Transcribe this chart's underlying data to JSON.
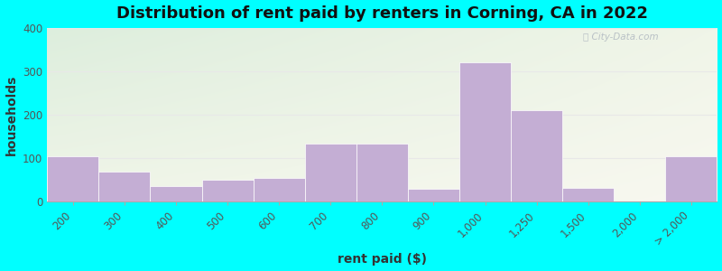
{
  "title": "Distribution of rent paid by renters in Corning, CA in 2022",
  "xlabel": "rent paid ($)",
  "ylabel": "households",
  "bin_edges": [
    200,
    300,
    400,
    500,
    600,
    700,
    800,
    900,
    1000,
    1250,
    1500,
    2000,
    2500
  ],
  "tick_labels": [
    "200",
    "300",
    "400",
    "500",
    "600",
    "700",
    "800",
    "900",
    "1,000",
    "1,250",
    "1,500",
    "2,000",
    "> 2,000"
  ],
  "values": [
    105,
    70,
    37,
    50,
    55,
    133,
    133,
    30,
    320,
    210,
    32,
    0,
    105
  ],
  "bar_color": "#c4aed4",
  "bar_edgecolor": "#c4aed4",
  "ylim": [
    0,
    400
  ],
  "yticks": [
    0,
    100,
    200,
    300,
    400
  ],
  "outer_bg": "#00ffff",
  "plot_bg_topleft": "#ddeedd",
  "plot_bg_bottomright": "#f8f8f0",
  "grid_color": "#e8e8e8",
  "title_fontsize": 13,
  "axis_label_fontsize": 10,
  "tick_fontsize": 8.5
}
